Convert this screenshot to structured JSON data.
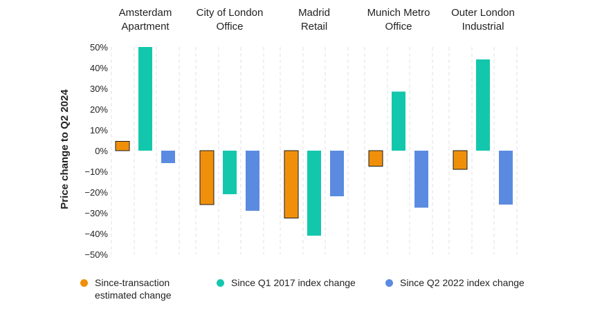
{
  "chart_data": {
    "type": "bar",
    "ylabel": "Price change to Q2 2024",
    "ylim": [
      -50,
      50
    ],
    "yticks": [
      50,
      40,
      30,
      20,
      10,
      0,
      -10,
      -20,
      -30,
      -40,
      -50
    ],
    "ytick_labels": [
      "50%",
      "40%",
      "30%",
      "20%",
      "10%",
      "0%",
      "−10%",
      "−20%",
      "−30%",
      "−40%",
      "−50%"
    ],
    "grid": "dashed vertical",
    "panels": [
      {
        "title": "Amsterdam\nApartment",
        "values": [
          4.5,
          50,
          -6
        ]
      },
      {
        "title": "City of London\nOffice",
        "values": [
          -26,
          -21,
          -29
        ]
      },
      {
        "title": "Madrid\nRetail",
        "values": [
          -32.5,
          -41,
          -22
        ]
      },
      {
        "title": "Munich Metro\nOffice",
        "values": [
          -7.5,
          28.5,
          -27.5
        ]
      },
      {
        "title": "Outer London\nIndustrial",
        "values": [
          -9,
          44,
          -26
        ]
      }
    ],
    "series": [
      {
        "name": "Since-transaction\nestimated change",
        "color": "#f0900a",
        "outlined": true
      },
      {
        "name": "Since Q1 2017 index change",
        "color": "#13c7ad",
        "outlined": false
      },
      {
        "name": "Since Q2 2022 index change",
        "color": "#5b8be0",
        "outlined": false
      }
    ],
    "legend_position": "bottom"
  }
}
